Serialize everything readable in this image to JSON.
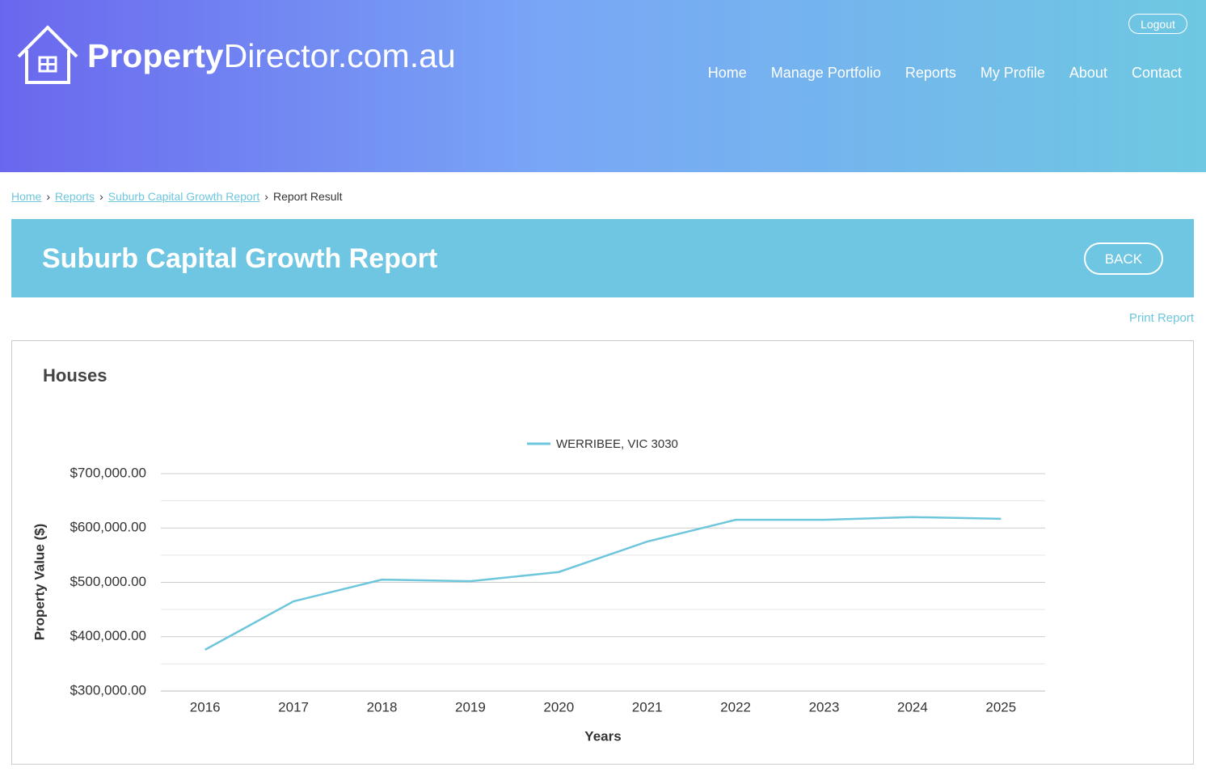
{
  "header": {
    "logo_bold": "Property",
    "logo_light": "Director.com.au",
    "logout": "Logout",
    "nav": [
      "Home",
      "Manage Portfolio",
      "Reports",
      "My Profile",
      "About",
      "Contact"
    ]
  },
  "breadcrumb": [
    "Home",
    "Reports",
    "Suburb Capital Growth Report",
    "Report Result"
  ],
  "banner": {
    "title": "Suburb Capital Growth Report",
    "back": "BACK"
  },
  "print_report": "Print Report",
  "panel_title": "Houses",
  "chart_data": {
    "type": "line",
    "categories": [
      "2016",
      "2017",
      "2018",
      "2019",
      "2020",
      "2021",
      "2022",
      "2023",
      "2024",
      "2025"
    ],
    "series": [
      {
        "name": "WERRIBEE, VIC 3030",
        "color": "#6ec6dc",
        "values": [
          376000,
          465000,
          505000,
          502000,
          519000,
          575000,
          615000,
          615000,
          620000,
          617000
        ]
      }
    ],
    "ylim": [
      300000,
      700000
    ],
    "yticks": [
      {
        "value": 300000,
        "label": "$300,000.00"
      },
      {
        "value": 400000,
        "label": "$400,000.00"
      },
      {
        "value": 500000,
        "label": "$500,000.00"
      },
      {
        "value": 600000,
        "label": "$600,000.00"
      },
      {
        "value": 700000,
        "label": "$700,000.00"
      }
    ],
    "yminor": [
      350000,
      450000,
      550000,
      650000
    ],
    "y_label": "Property Value ($)",
    "x_label": "Years",
    "grid": true,
    "legend": "top"
  }
}
